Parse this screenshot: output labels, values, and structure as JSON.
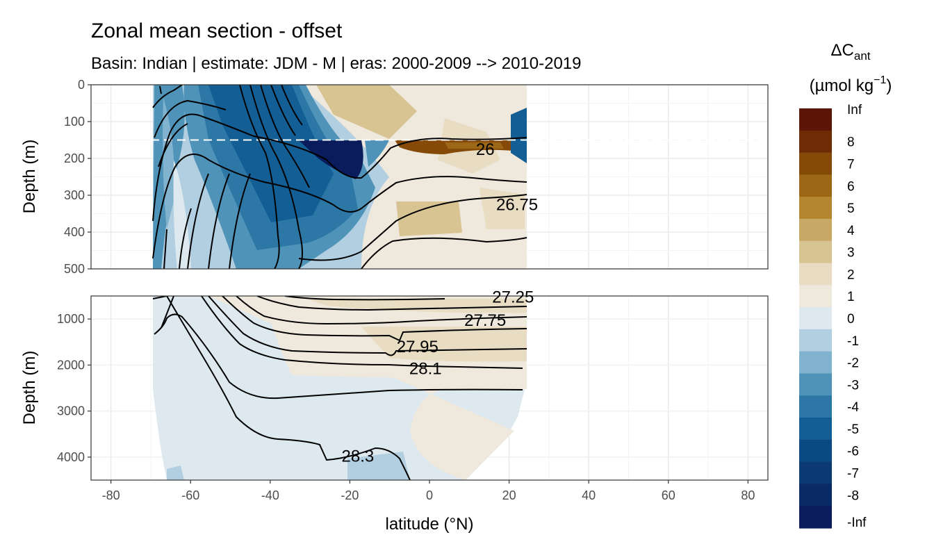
{
  "chart_data": {
    "type": "heatmap",
    "title": "Zonal mean section - offset",
    "subtitle": "Basin: Indian | estimate: JDM - M | eras: 2000-2009 --> 2010-2019",
    "xlabel": "latitude (°N)",
    "ylabel": "Depth (m)",
    "x_ticks": [
      -80,
      -60,
      -40,
      -20,
      0,
      20,
      40,
      60,
      80
    ],
    "xlim": [
      -85,
      85
    ],
    "grid": true,
    "panels": [
      {
        "name": "upper",
        "ylim": [
          0,
          500
        ],
        "y_ticks": [
          0,
          100,
          200,
          300,
          400,
          500
        ],
        "reference_line_depth": 150
      },
      {
        "name": "lower",
        "ylim": [
          500,
          4500
        ],
        "y_ticks": [
          1000,
          2000,
          3000,
          4000
        ]
      }
    ],
    "data_extent": {
      "lat_min": -70,
      "lat_max": 24
    },
    "legend": {
      "title_main": "ΔC",
      "title_sub": "ant",
      "unit_prefix": "(µmol kg",
      "unit_sup": "−1",
      "unit_suffix": ")",
      "placement": "right",
      "labels": [
        "Inf",
        "8",
        "7",
        "6",
        "5",
        "4",
        "3",
        "2",
        "1",
        "0",
        "-1",
        "-2",
        "-3",
        "-4",
        "-5",
        "-6",
        "-7",
        "-8",
        "-Inf"
      ],
      "colors": [
        "#5c1608",
        "#6e2c06",
        "#864a08",
        "#9c6717",
        "#b3862f",
        "#c7a865",
        "#d8c393",
        "#e8ddc2",
        "#efe8dc",
        "#dde8ef",
        "#b2cfe1",
        "#82b3ce",
        "#4f93b8",
        "#2c77a6",
        "#135e94",
        "#0a4a82",
        "#0b3a72",
        "#0a2a66",
        "#0a1c5c"
      ]
    },
    "contours": [
      {
        "label": "26",
        "lat": 14,
        "depth": 175
      },
      {
        "label": "26.75",
        "lat": 22,
        "depth": 325
      },
      {
        "label": "27.25",
        "lat": 21,
        "depth": 520
      },
      {
        "label": "27.75",
        "lat": 14,
        "depth": 1030
      },
      {
        "label": "27.95",
        "lat": -3,
        "depth": 1600
      },
      {
        "label": "28.1",
        "lat": -1,
        "depth": 2080
      },
      {
        "label": "28.3",
        "lat": -18,
        "depth": 3980
      }
    ]
  }
}
